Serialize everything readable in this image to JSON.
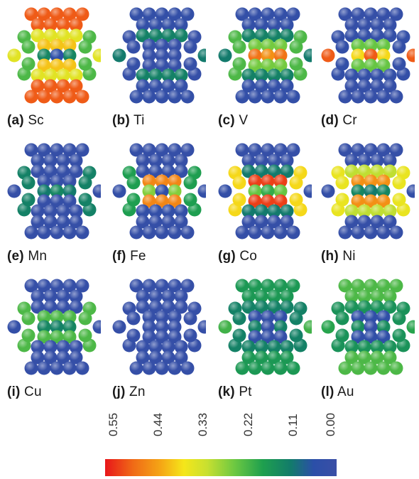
{
  "colors": {
    "scale": [
      "#e8161a",
      "#f06a16",
      "#f5a615",
      "#f5e61a",
      "#c8e030",
      "#6cc842",
      "#1fa04e",
      "#127c6a",
      "#2b4fa8",
      "#3a4fa6"
    ],
    "max_value": 0.55
  },
  "panels": [
    {
      "letter": "(a)",
      "element": "Sc",
      "values": {
        "tip": 0.5,
        "shell": 0.34,
        "inner": 0.4,
        "waist": 0.14,
        "core": 0.05,
        "side_outer": 0.34,
        "side_inner": 0.22
      }
    },
    {
      "letter": "(b)",
      "element": "Ti",
      "values": {
        "tip": 0.03,
        "shell": 0.13,
        "inner": 0.02,
        "waist": 0.02,
        "core": 0.02,
        "side_outer": 0.12,
        "side_inner": 0.02
      }
    },
    {
      "letter": "(c)",
      "element": "V",
      "values": {
        "tip": 0.03,
        "shell": 0.13,
        "inner": 0.25,
        "waist": 0.48,
        "core": 0.45,
        "side_outer": 0.12,
        "side_inner": 0.22
      }
    },
    {
      "letter": "(d)",
      "element": "Cr",
      "values": {
        "tip": 0.02,
        "shell": 0.03,
        "inner": 0.24,
        "waist": 0.38,
        "core": 0.5,
        "side_outer": 0.5,
        "side_inner": 0.03
      }
    },
    {
      "letter": "(e)",
      "element": "Mn",
      "values": {
        "tip": 0.02,
        "shell": 0.02,
        "inner": 0.02,
        "waist": 0.12,
        "core": 0.14,
        "side_outer": 0.02,
        "side_inner": 0.13
      }
    },
    {
      "letter": "(f)",
      "element": "Fe",
      "values": {
        "tip": 0.02,
        "shell": 0.03,
        "inner": 0.46,
        "waist": 0.26,
        "core": 0.04,
        "side_outer": 0.03,
        "side_inner": 0.18
      }
    },
    {
      "letter": "(g)",
      "element": "Co",
      "values": {
        "tip": 0.02,
        "shell": 0.12,
        "inner": 0.52,
        "waist": 0.24,
        "core": 0.2,
        "side_outer": 0.03,
        "side_inner": 0.38
      }
    },
    {
      "letter": "(h)",
      "element": "Ni",
      "values": {
        "tip": 0.02,
        "shell": 0.3,
        "inner": 0.45,
        "waist": 0.14,
        "core": 0.12,
        "side_outer": 0.03,
        "side_inner": 0.35
      }
    },
    {
      "letter": "(i)",
      "element": "Cu",
      "values": {
        "tip": 0.02,
        "shell": 0.02,
        "inner": 0.22,
        "waist": 0.14,
        "core": 0.13,
        "side_outer": 0.03,
        "side_inner": 0.22
      }
    },
    {
      "letter": "(j)",
      "element": "Zn",
      "values": {
        "tip": 0.02,
        "shell": 0.02,
        "inner": 0.02,
        "waist": 0.02,
        "core": 0.02,
        "side_outer": 0.02,
        "side_inner": 0.02
      }
    },
    {
      "letter": "(k)",
      "element": "Pt",
      "values": {
        "tip": 0.17,
        "shell": 0.13,
        "inner": 0.03,
        "waist": 0.13,
        "core": 0.03,
        "side_outer": 0.21,
        "side_inner": 0.13
      }
    },
    {
      "letter": "(l)",
      "element": "Au",
      "values": {
        "tip": 0.22,
        "shell": 0.16,
        "inner": 0.04,
        "waist": 0.15,
        "core": 0.03,
        "side_outer": 0.19,
        "side_inner": 0.16
      }
    }
  ],
  "colorbar": {
    "ticks": [
      "0.55",
      "0.44",
      "0.33",
      "0.22",
      "0.11",
      "0.00"
    ]
  }
}
